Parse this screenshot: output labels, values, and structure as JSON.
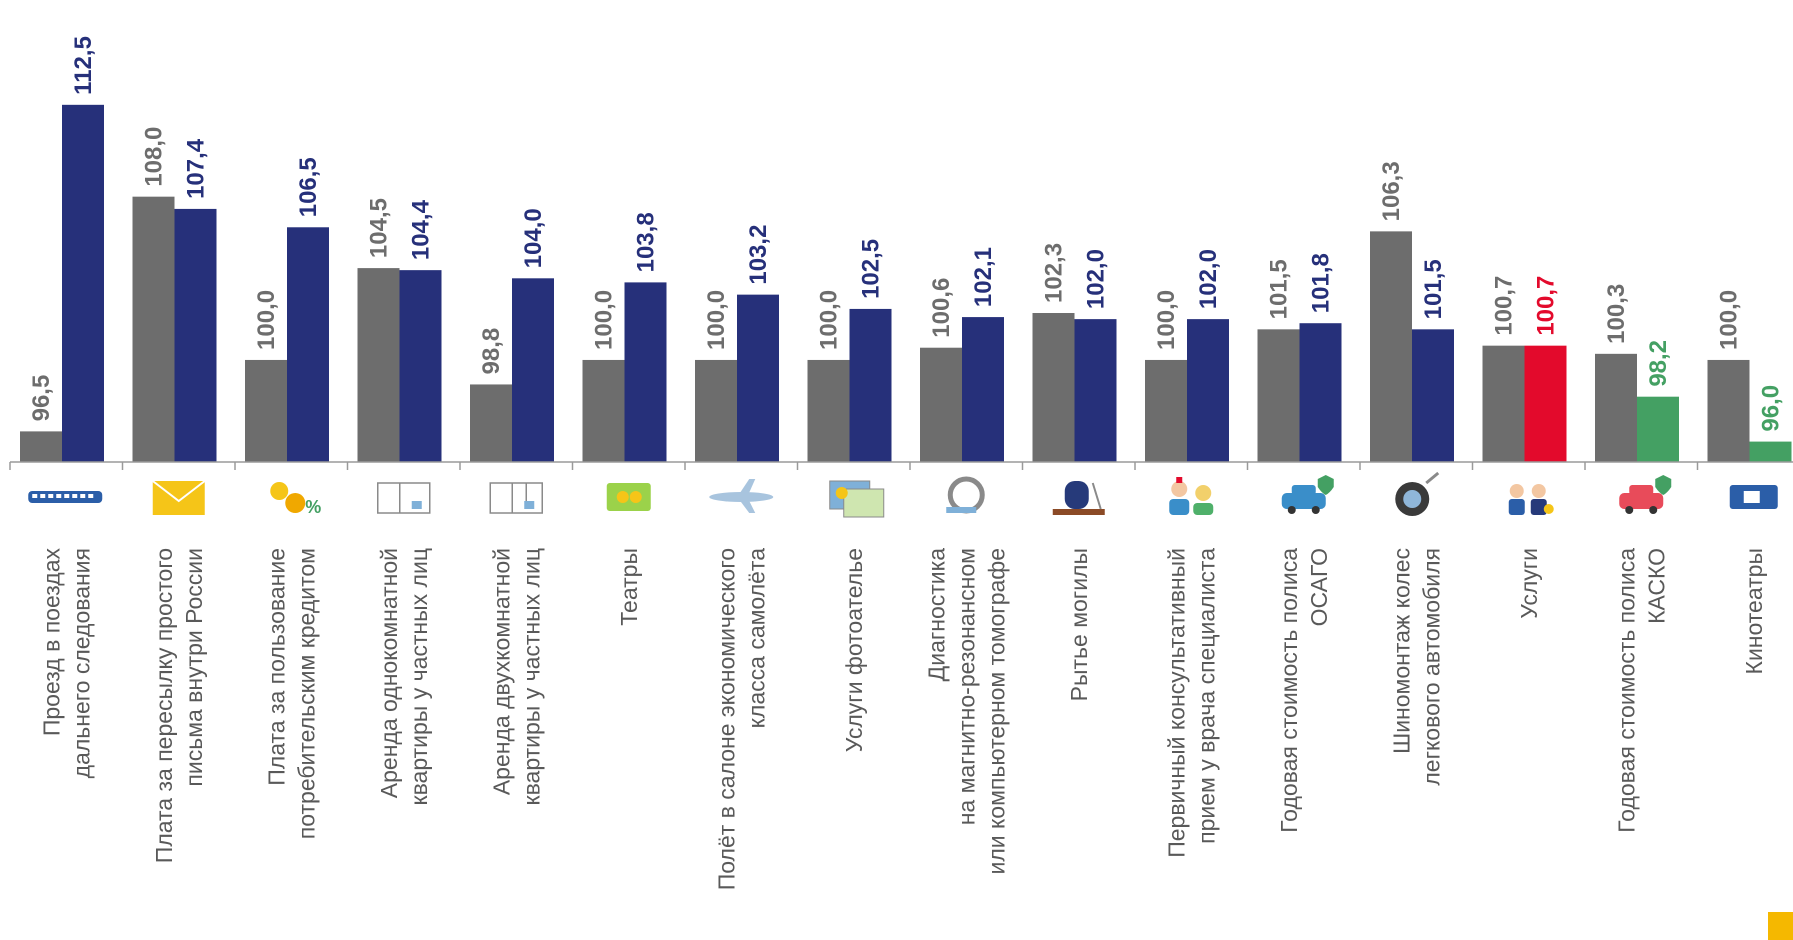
{
  "chart_data": {
    "type": "bar",
    "title": "",
    "xlabel": "",
    "ylabel": "",
    "ylim": [
      95,
      114.5
    ],
    "grid": false,
    "legend": "none",
    "categories": [
      [
        "Проезд в поездах",
        "дальнего следования"
      ],
      [
        "Плата за пересылку простого",
        "письма внутри России"
      ],
      [
        "Плата за пользование",
        "потребительским кредитом"
      ],
      [
        "Аренда однокомнатной",
        "квартиры у частных лиц"
      ],
      [
        "Аренда двухкомнатной",
        "квартиры у частных лиц"
      ],
      [
        "Театры"
      ],
      [
        "Полёт в салоне экономического",
        "класса самолёта"
      ],
      [
        "Услуги фотоателье"
      ],
      [
        "Диагностика",
        "на магнитно-резонансном",
        "или компьютерном томографе"
      ],
      [
        "Рытье могилы"
      ],
      [
        "Первичный консультативный",
        "прием у врача специалиста"
      ],
      [
        "Годовая стоимость полиса",
        "ОСАГО"
      ],
      [
        "Шиномонтаж колес",
        "легкового автомобиля"
      ],
      [
        "Услуги"
      ],
      [
        "Годовая стоимость полиса",
        "КАСКО"
      ],
      [
        "Кинотеатры"
      ]
    ],
    "icons": [
      "train-icon",
      "envelope-icon",
      "coins-percent-icon",
      "one-room-apartment-icon",
      "two-room-apartment-icon",
      "theater-ticket-icon",
      "airplane-icon",
      "photo-prints-icon",
      "tomograph-icon",
      "grave-icon",
      "doctors-icon",
      "car-insurance-shield-icon",
      "tire-wrench-icon",
      "service-workers-icon",
      "car-casco-shield-icon",
      "cinema-ticket-icon"
    ],
    "series": [
      {
        "values": [
          96.5,
          108.0,
          100.0,
          104.5,
          98.8,
          100.0,
          100.0,
          100.0,
          100.6,
          102.3,
          100.0,
          101.5,
          106.3,
          100.7,
          100.3,
          100.0
        ],
        "labels": [
          "96,5",
          "108,0",
          "100,0",
          "104,5",
          "98,8",
          "100,0",
          "100,0",
          "100,0",
          "100,6",
          "102,3",
          "100,0",
          "101,5",
          "106,3",
          "100,7",
          "100,3",
          "100,0"
        ],
        "color": "#6d6d6d"
      },
      {
        "values": [
          112.5,
          107.4,
          106.5,
          104.4,
          104.0,
          103.8,
          103.2,
          102.5,
          102.1,
          102.0,
          102.0,
          101.8,
          101.5,
          100.7,
          98.2,
          96.0
        ],
        "labels": [
          "112,5",
          "107,4",
          "106,5",
          "104,4",
          "104,0",
          "103,8",
          "103,2",
          "102,5",
          "102,1",
          "102,0",
          "102,0",
          "101,8",
          "101,5",
          "100,7",
          "98,2",
          "96,0"
        ],
        "colors": [
          "#26307a",
          "#26307a",
          "#26307a",
          "#26307a",
          "#26307a",
          "#26307a",
          "#26307a",
          "#26307a",
          "#26307a",
          "#26307a",
          "#26307a",
          "#26307a",
          "#26307a",
          "#e30a2c",
          "#44a063",
          "#44a063"
        ]
      }
    ],
    "label_colors": {
      "gray": "#6d6d6d",
      "blue": "#26307a",
      "red": "#e30a2c",
      "green": "#44a063"
    },
    "axis_color": "#9a9a9a"
  }
}
